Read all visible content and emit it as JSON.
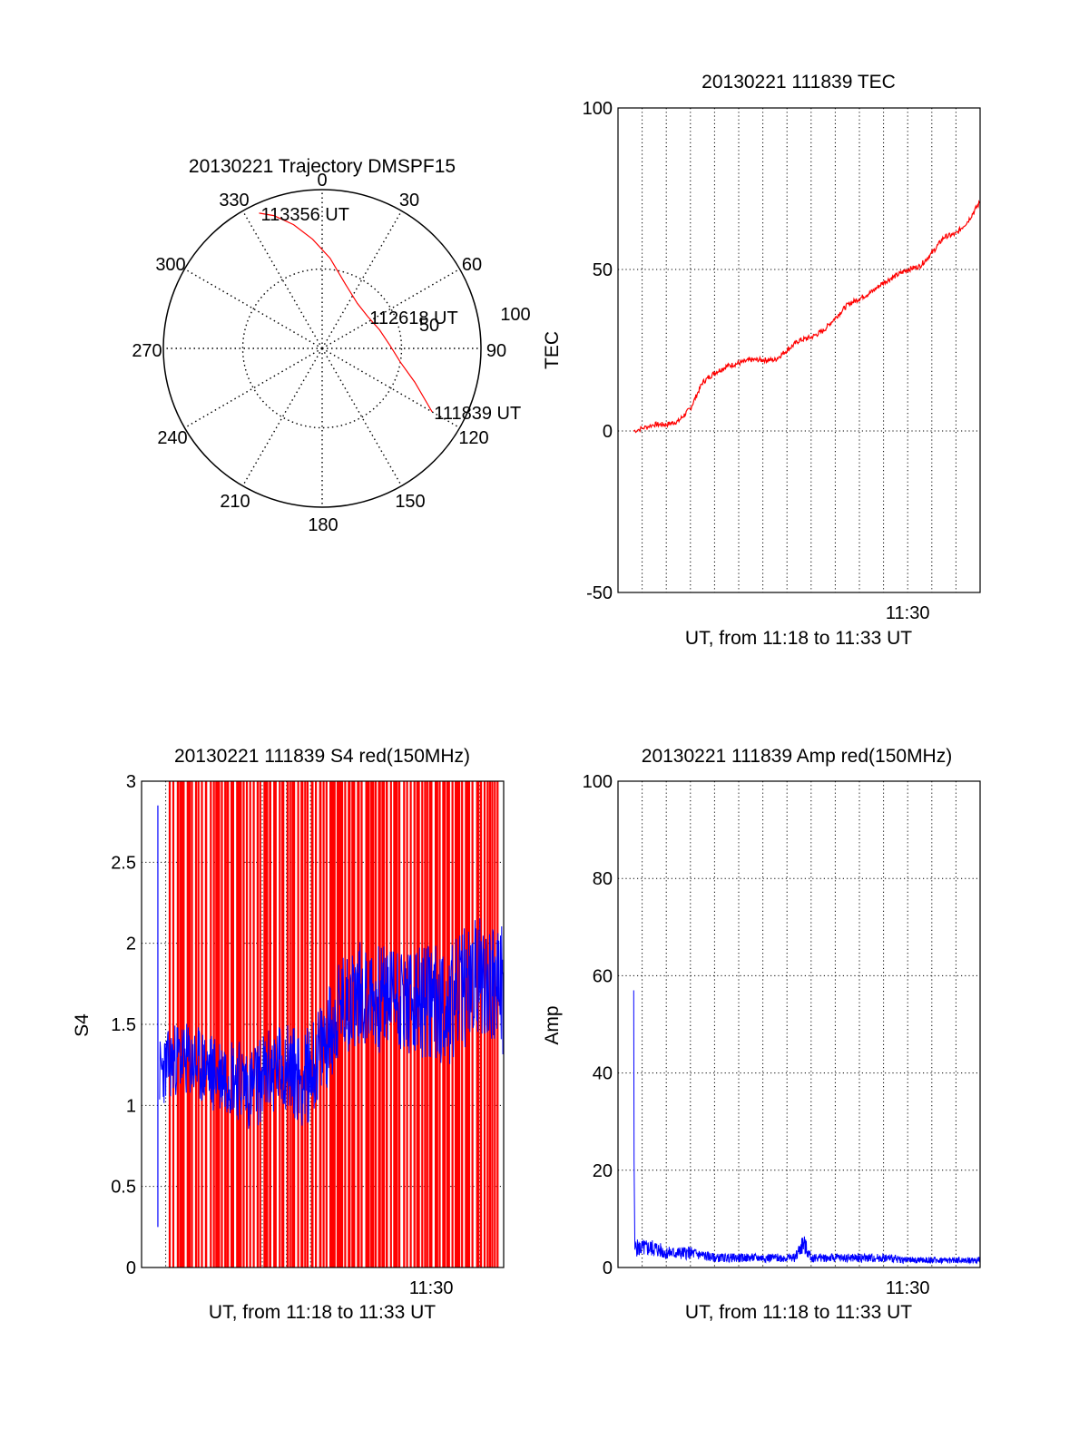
{
  "chart_data": [
    {
      "type": "polar",
      "title": "20130221 Trajectory DMSPF15",
      "angle_labels": [
        "0",
        "30",
        "60",
        "90",
        "120",
        "150",
        "180",
        "210",
        "240",
        "270",
        "300",
        "330"
      ],
      "radius_labels": [
        "50",
        "100"
      ],
      "rlim": [
        0,
        100
      ],
      "grid": true,
      "series": [
        {
          "color": "#ff0000",
          "points": [
            {
              "az": 120,
              "r": 80
            },
            {
              "az": 110,
              "r": 62
            },
            {
              "az": 100,
              "r": 50
            },
            {
              "az": 88,
              "r": 43
            },
            {
              "az": 72,
              "r": 38
            },
            {
              "az": 55,
              "r": 35
            },
            {
              "az": 38,
              "r": 36
            },
            {
              "az": 20,
              "r": 43
            },
            {
              "az": 5,
              "r": 57
            },
            {
              "az": -5,
              "r": 69
            },
            {
              "az": -13,
              "r": 80
            },
            {
              "az": -20,
              "r": 89
            },
            {
              "az": -25,
              "r": 94
            }
          ]
        }
      ],
      "annotations": [
        {
          "text": "111839 UT",
          "az": 120,
          "r": 80
        },
        {
          "text": "112618 UT",
          "az": 55,
          "r": 35
        },
        {
          "text": "113356 UT",
          "az": -25,
          "r": 94
        }
      ]
    },
    {
      "type": "line",
      "title": "20130221 111839 TEC",
      "xlabel": "UT, from 11:18 to 11:33 UT",
      "ylabel": "TEC",
      "xlim": [
        "11:18:00",
        "11:33:00"
      ],
      "ylim": [
        -50,
        100
      ],
      "yticks": [
        -50,
        0,
        50,
        100
      ],
      "xtick_labels": [
        {
          "x": "11:30:00",
          "label": "11:30"
        }
      ],
      "grid": true,
      "series": [
        {
          "color": "#ff0000",
          "x": [
            "11:18:39",
            "11:19:30",
            "11:20:00",
            "11:20:30",
            "11:21:00",
            "11:21:30",
            "11:22:00",
            "11:22:30",
            "11:23:00",
            "11:23:30",
            "11:24:00",
            "11:24:30",
            "11:25:00",
            "11:25:30",
            "11:26:00",
            "11:26:30",
            "11:27:00",
            "11:27:30",
            "11:28:00",
            "11:28:30",
            "11:29:00",
            "11:29:30",
            "11:30:00",
            "11:30:30",
            "11:31:00",
            "11:31:30",
            "11:32:00",
            "11:32:30",
            "11:33:00"
          ],
          "y": [
            0,
            2,
            2,
            3,
            7,
            15,
            18,
            20,
            21,
            22,
            22,
            22,
            25,
            28,
            29,
            31,
            35,
            39,
            41,
            43,
            46,
            48,
            50,
            51,
            55,
            60,
            61,
            65,
            71
          ]
        }
      ]
    },
    {
      "type": "line",
      "title": "20130221 111839 S4 red(150MHz)",
      "xlabel": "UT, from 11:18 to 11:33 UT",
      "ylabel": "S4",
      "xlim": [
        "11:18:00",
        "11:33:00"
      ],
      "ylim": [
        0,
        3
      ],
      "yticks": [
        0,
        0.5,
        1,
        1.5,
        2,
        2.5,
        3
      ],
      "xtick_labels": [
        {
          "x": "11:30:00",
          "label": "11:30"
        }
      ],
      "grid": true,
      "series": [
        {
          "color": "#ff0000",
          "x": [
            "11:19:10",
            "11:19:40",
            "11:20:05",
            "11:20:40",
            "11:21:10",
            "11:21:35",
            "11:22:05",
            "11:22:30",
            "11:22:55",
            "11:23:20",
            "11:23:50",
            "11:24:15",
            "11:24:40",
            "11:25:05",
            "11:25:25",
            "11:25:50",
            "11:26:15",
            "11:26:35",
            "11:27:00",
            "11:27:25",
            "11:27:50",
            "11:28:10",
            "11:28:35",
            "11:29:00",
            "11:29:25",
            "11:29:50",
            "11:30:15",
            "11:30:40",
            "11:31:05",
            "11:31:30",
            "11:31:55",
            "11:32:20",
            "11:32:45"
          ],
          "y": [
            3,
            0,
            3,
            0,
            3,
            0,
            3,
            0,
            3,
            0,
            3,
            0,
            3,
            0,
            3,
            0,
            3,
            0,
            3,
            0,
            3,
            0,
            3,
            0,
            3,
            0,
            3,
            0,
            3,
            0,
            3,
            0,
            3
          ]
        },
        {
          "color": "#0000ff",
          "x": [
            "11:18:45",
            "11:19:30",
            "11:20:15",
            "11:21:00",
            "11:21:45",
            "11:22:30",
            "11:23:15",
            "11:24:00",
            "11:24:45",
            "11:25:30",
            "11:26:15",
            "11:27:00",
            "11:27:45",
            "11:28:30",
            "11:29:15",
            "11:30:00",
            "11:30:45",
            "11:31:30",
            "11:32:15",
            "11:33:00"
          ],
          "y": [
            1.2,
            1.3,
            1.25,
            1.2,
            1.2,
            1.1,
            1.2,
            1.25,
            1.15,
            1.35,
            1.6,
            1.7,
            1.65,
            1.7,
            1.6,
            1.65,
            1.6,
            1.75,
            1.8,
            1.7
          ]
        }
      ]
    },
    {
      "type": "line",
      "title": "20130221 111839 Amp red(150MHz)",
      "xlabel": "UT, from 11:18 to 11:33 UT",
      "ylabel": "Amp",
      "xlim": [
        "11:18:00",
        "11:33:00"
      ],
      "ylim": [
        0,
        100
      ],
      "yticks": [
        0,
        20,
        40,
        60,
        80,
        100
      ],
      "xtick_labels": [
        {
          "x": "11:30:00",
          "label": "11:30"
        }
      ],
      "grid": true,
      "series": [
        {
          "color": "#0000ff",
          "x": [
            "11:18:39",
            "11:18:40",
            "11:18:42",
            "11:19:00",
            "11:19:30",
            "11:20:00",
            "11:21:00",
            "11:22:00",
            "11:23:00",
            "11:24:00",
            "11:25:00",
            "11:25:20",
            "11:25:40",
            "11:26:00",
            "11:27:00",
            "11:28:00",
            "11:29:00",
            "11:30:00",
            "11:31:00",
            "11:32:00",
            "11:33:00"
          ],
          "y": [
            57,
            22,
            4,
            4,
            4,
            3,
            3,
            2,
            2,
            2,
            2,
            2,
            5,
            2,
            2,
            2,
            2,
            1.5,
            1.5,
            1.5,
            1.5
          ]
        }
      ]
    }
  ]
}
